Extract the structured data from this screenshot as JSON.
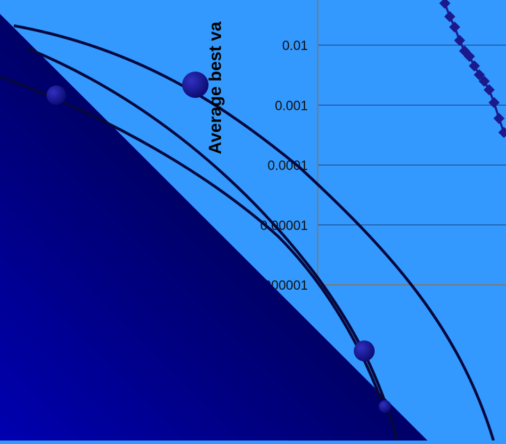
{
  "chart_data": {
    "type": "line",
    "title": "",
    "xlabel": "",
    "ylabel": "Average best va",
    "yscale": "log",
    "ylim": [
      1e-06,
      0.05
    ],
    "y_ticks": [
      0.01,
      0.001,
      0.0001,
      1e-05,
      1e-06
    ],
    "y_tick_labels": [
      "0.01",
      "0.001",
      "0.0001",
      "0.00001",
      "0.000001"
    ],
    "grid": true,
    "series": [
      {
        "values": [
          0.05,
          0.03,
          0.02,
          0.012,
          0.008,
          0.0065,
          0.0045,
          0.0032,
          0.0025,
          0.0018,
          0.0011,
          0.0006,
          0.00035
        ]
      }
    ]
  },
  "colors": {
    "background": "#3399ff",
    "series": "#1a1a8c",
    "gridline": "#1c3f73",
    "axis": "#7a7a7a",
    "decor_curve": "#07073d",
    "decor_dot": "#13138a"
  },
  "decoration": {
    "shape": "dark-gradient-triangle",
    "curves": 3,
    "dots": 4
  }
}
